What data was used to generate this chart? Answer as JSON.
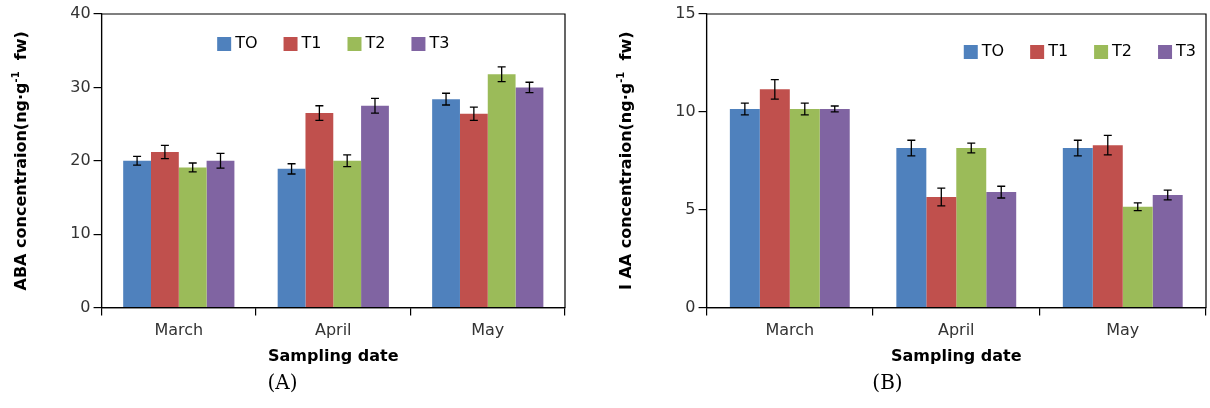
{
  "chart_data": [
    {
      "type": "bar",
      "categories": [
        "March",
        "April",
        "May"
      ],
      "xlabel": "Sampling date",
      "ylabel": "ABA concentraion(ng·g$^{-1}$  fw)",
      "ylim": [
        0,
        40
      ],
      "yticks": [
        0,
        10,
        20,
        30,
        40
      ],
      "grid": false,
      "legend": "top",
      "annotations": [
        "(A)"
      ],
      "series": [
        {
          "name": "TO",
          "color": "#4f81bd",
          "values": [
            20.0,
            18.9,
            28.4
          ],
          "errors": [
            0.6,
            0.7,
            0.8
          ]
        },
        {
          "name": "T1",
          "color": "#c0504d",
          "values": [
            21.2,
            26.5,
            26.4
          ],
          "errors": [
            0.9,
            1.0,
            0.9
          ]
        },
        {
          "name": "T2",
          "color": "#9bbb59",
          "values": [
            19.1,
            20.0,
            31.8
          ],
          "errors": [
            0.6,
            0.8,
            1.0
          ]
        },
        {
          "name": "T3",
          "color": "#8064a2",
          "values": [
            20.0,
            27.5,
            30.0
          ],
          "errors": [
            1.0,
            1.0,
            0.7
          ]
        }
      ]
    },
    {
      "type": "bar",
      "categories": [
        "March",
        "April",
        "May"
      ],
      "xlabel": "Sampling date",
      "ylabel": "I AA concentraion(ng·g$^{-1}$  fw)",
      "ylim": [
        0,
        15
      ],
      "yticks": [
        0,
        5,
        10,
        15
      ],
      "grid": false,
      "legend": "top right",
      "annotations": [
        "(B)"
      ],
      "series": [
        {
          "name": "TO",
          "color": "#4f81bd",
          "values": [
            10.15,
            8.15,
            8.15
          ],
          "errors": [
            0.3,
            0.4,
            0.4
          ]
        },
        {
          "name": "T1",
          "color": "#c0504d",
          "values": [
            11.15,
            5.65,
            8.3
          ],
          "errors": [
            0.5,
            0.45,
            0.5
          ]
        },
        {
          "name": "T2",
          "color": "#9bbb59",
          "values": [
            10.15,
            8.15,
            5.15
          ],
          "errors": [
            0.3,
            0.25,
            0.2
          ]
        },
        {
          "name": "T3",
          "color": "#8064a2",
          "values": [
            10.15,
            5.9,
            5.75
          ],
          "errors": [
            0.15,
            0.3,
            0.25
          ]
        }
      ]
    }
  ]
}
